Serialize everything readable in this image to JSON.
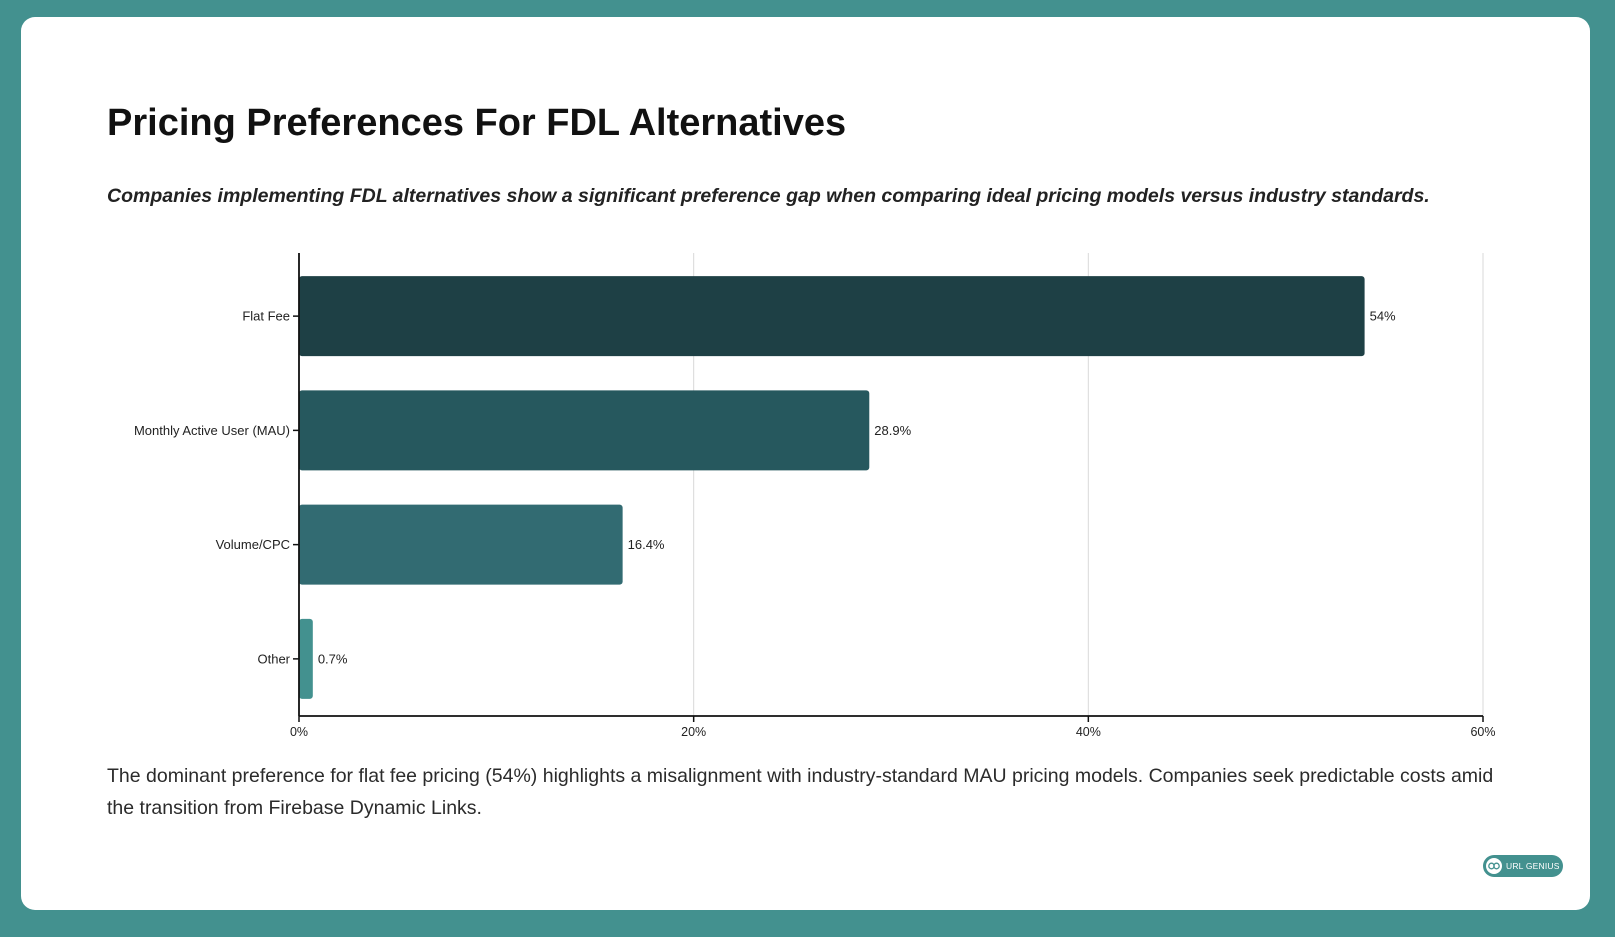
{
  "colors": {
    "background": "#43918f",
    "card": "#ffffff",
    "bars": [
      "#1e4045",
      "#26585e",
      "#326b72",
      "#43918f"
    ]
  },
  "header": {
    "title": "Pricing Preferences For FDL Alternatives",
    "subtitle": "Companies implementing FDL alternatives show a significant preference gap when comparing ideal pricing models versus industry standards."
  },
  "chart_data": {
    "type": "bar",
    "orientation": "horizontal",
    "categories": [
      "Flat Fee",
      "Monthly Active User (MAU)",
      "Volume/CPC",
      "Other"
    ],
    "values": [
      54,
      28.9,
      16.4,
      0.7
    ],
    "value_labels": [
      "54%",
      "28.9%",
      "16.4%",
      "0.7%"
    ],
    "xlim": [
      0,
      60
    ],
    "x_ticks": [
      0,
      20,
      40,
      60
    ],
    "x_tick_labels": [
      "0%",
      "20%",
      "40%",
      "60%"
    ],
    "grid": "vertical",
    "legend": "none"
  },
  "footer": {
    "description": "The dominant preference for flat fee pricing (54%) highlights a misalignment with industry-standard MAU pricing models. Companies seek predictable costs amid the transition from Firebase Dynamic Links.",
    "badge_text": "URL GENIUS",
    "badge_icon": "link-icon"
  }
}
